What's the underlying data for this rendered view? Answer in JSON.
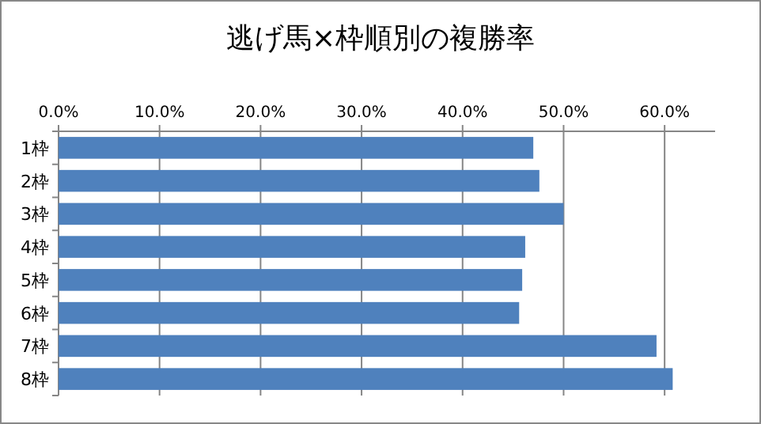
{
  "chart_data": {
    "type": "bar",
    "orientation": "horizontal",
    "title": "逃げ馬×枠順別の複勝率",
    "categories": [
      "1枠",
      "2枠",
      "3枠",
      "4枠",
      "5枠",
      "6枠",
      "7枠",
      "8枠"
    ],
    "values": [
      47.0,
      47.6,
      50.0,
      46.2,
      45.9,
      45.6,
      59.2,
      60.8
    ],
    "color": "#4f81bd",
    "xlim": [
      0,
      65
    ],
    "xticks": [
      {
        "value": 0,
        "label": "0.0%"
      },
      {
        "value": 10,
        "label": "10.0%"
      },
      {
        "value": 20,
        "label": "20.0%"
      },
      {
        "value": 30,
        "label": "30.0%"
      },
      {
        "value": 40,
        "label": "40.0%"
      },
      {
        "value": 50,
        "label": "50.0%"
      },
      {
        "value": 60,
        "label": "60.0%"
      }
    ],
    "grid": "x"
  }
}
